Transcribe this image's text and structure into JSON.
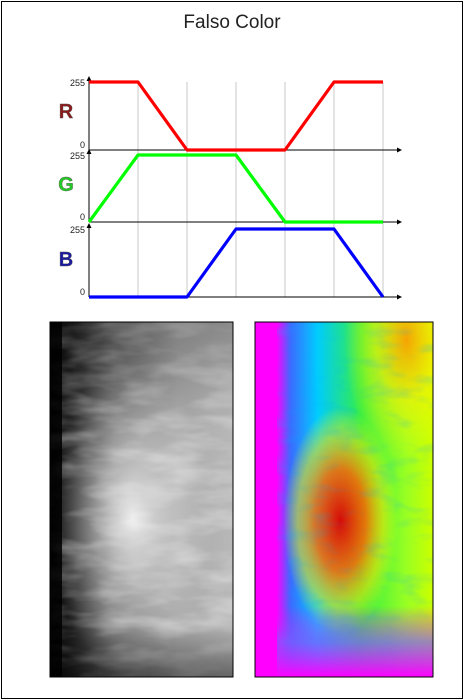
{
  "title": "Falso Color",
  "channels": [
    {
      "key": "R",
      "label": "R",
      "color": "#8b1a1a",
      "line_color": "#ff0000",
      "ymax_label": "255",
      "ymin_label": "0",
      "values": [
        255,
        255,
        0,
        0,
        0,
        255,
        255
      ]
    },
    {
      "key": "G",
      "label": "G",
      "color": "#22cc22",
      "line_color": "#00ff00",
      "ymax_label": "255",
      "ymin_label": "0",
      "values": [
        0,
        255,
        255,
        255,
        0,
        0,
        0
      ]
    },
    {
      "key": "B",
      "label": "B",
      "color": "#1a1aa0",
      "line_color": "#0000ff",
      "ymax_label": "255",
      "ymin_label": "0",
      "values": [
        0,
        0,
        0,
        255,
        255,
        255,
        0
      ]
    }
  ],
  "breakpoints": 7,
  "images": [
    {
      "name": "grayscale-mammogram",
      "kind": "grayscale"
    },
    {
      "name": "false-color-mammogram",
      "kind": "false-color"
    }
  ]
}
